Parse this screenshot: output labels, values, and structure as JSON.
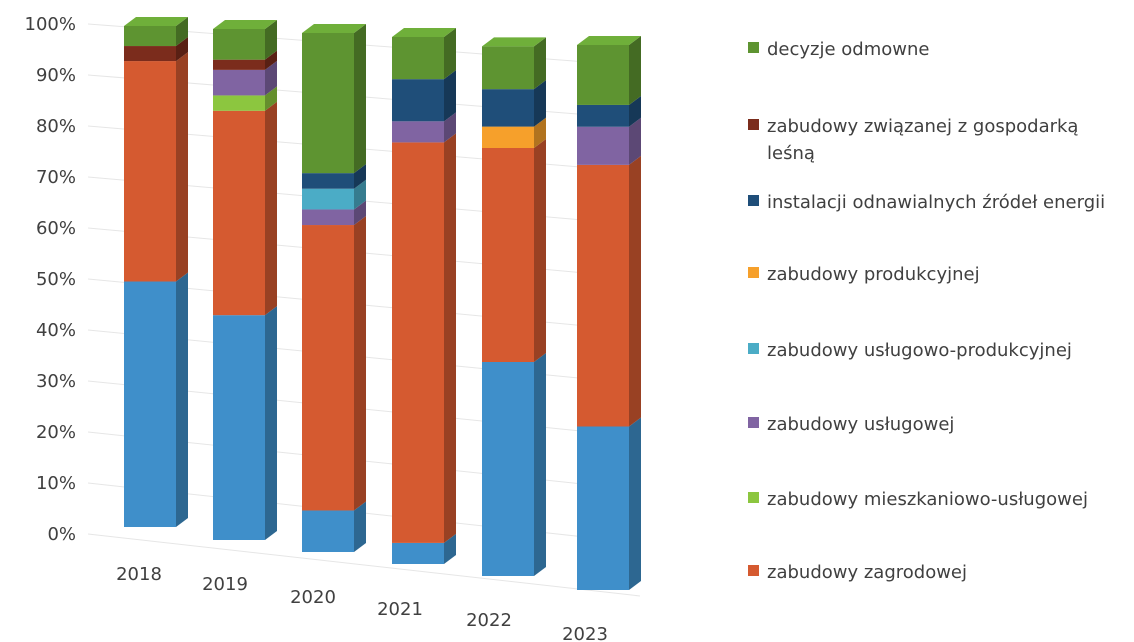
{
  "chart_data": {
    "type": "bar",
    "stacked": true,
    "three_d": true,
    "categories": [
      "2018",
      "2019",
      "2020",
      "2021",
      "2022",
      "2023"
    ],
    "yticks": [
      "0%",
      "10%",
      "20%",
      "30%",
      "40%",
      "50%",
      "60%",
      "70%",
      "80%",
      "90%",
      "100%"
    ],
    "ylim": [
      0,
      100
    ],
    "series": [
      {
        "name": "zabudowy zagrodowej",
        "color": "#d55a30",
        "values": [
          44,
          40,
          55,
          76,
          40,
          48
        ]
      },
      {
        "name": "zabudowy mieszkaniowo-usługowej",
        "color": "#8cc63f",
        "values": [
          0,
          3,
          0,
          0,
          0,
          0
        ]
      },
      {
        "name": "zabudowy usługowej",
        "color": "#8064a2",
        "values": [
          0,
          5,
          3,
          4,
          0,
          7
        ]
      },
      {
        "name": "zabudowy usługowo-produkcyjnej",
        "color": "#4bacc6",
        "values": [
          0,
          0,
          4,
          0,
          0,
          0
        ]
      },
      {
        "name": "zabudowy produkcyjnej",
        "color": "#f6a02b",
        "values": [
          0,
          0,
          0,
          0,
          4,
          0
        ]
      },
      {
        "name": "instalacji odnawialnych źródeł energii",
        "color": "#1f4e79",
        "values": [
          0,
          0,
          3,
          8,
          7,
          4
        ]
      },
      {
        "name": "zabudowy związanej z gospodarką leśną",
        "color": "#7b2c1c",
        "values": [
          3,
          2,
          0,
          0,
          0,
          0
        ]
      },
      {
        "name": "decyzje odmowne",
        "color": "#5e9431",
        "values": [
          4,
          6,
          27,
          8,
          8,
          11
        ]
      },
      {
        "name": "",
        "color": "#3f8fca",
        "values": [
          49,
          44,
          8,
          4,
          40,
          30
        ]
      }
    ],
    "legend": {
      "position": "right",
      "entries": [
        {
          "label": "decyzje odmowne",
          "color": "#5e9431"
        },
        {
          "label": "zabudowy związanej z gospodarką leśną",
          "color": "#7b2c1c"
        },
        {
          "label": "instalacji odnawialnych źródeł energii",
          "color": "#1f4e79"
        },
        {
          "label": "zabudowy produkcyjnej",
          "color": "#f6a02b"
        },
        {
          "label": "zabudowy usługowo-produkcyjnej",
          "color": "#4bacc6"
        },
        {
          "label": "zabudowy usługowej",
          "color": "#8064a2"
        },
        {
          "label": "zabudowy mieszkaniowo-usługowej",
          "color": "#8cc63f"
        },
        {
          "label": "zabudowy zagrodowej",
          "color": "#d55a30"
        }
      ]
    }
  }
}
